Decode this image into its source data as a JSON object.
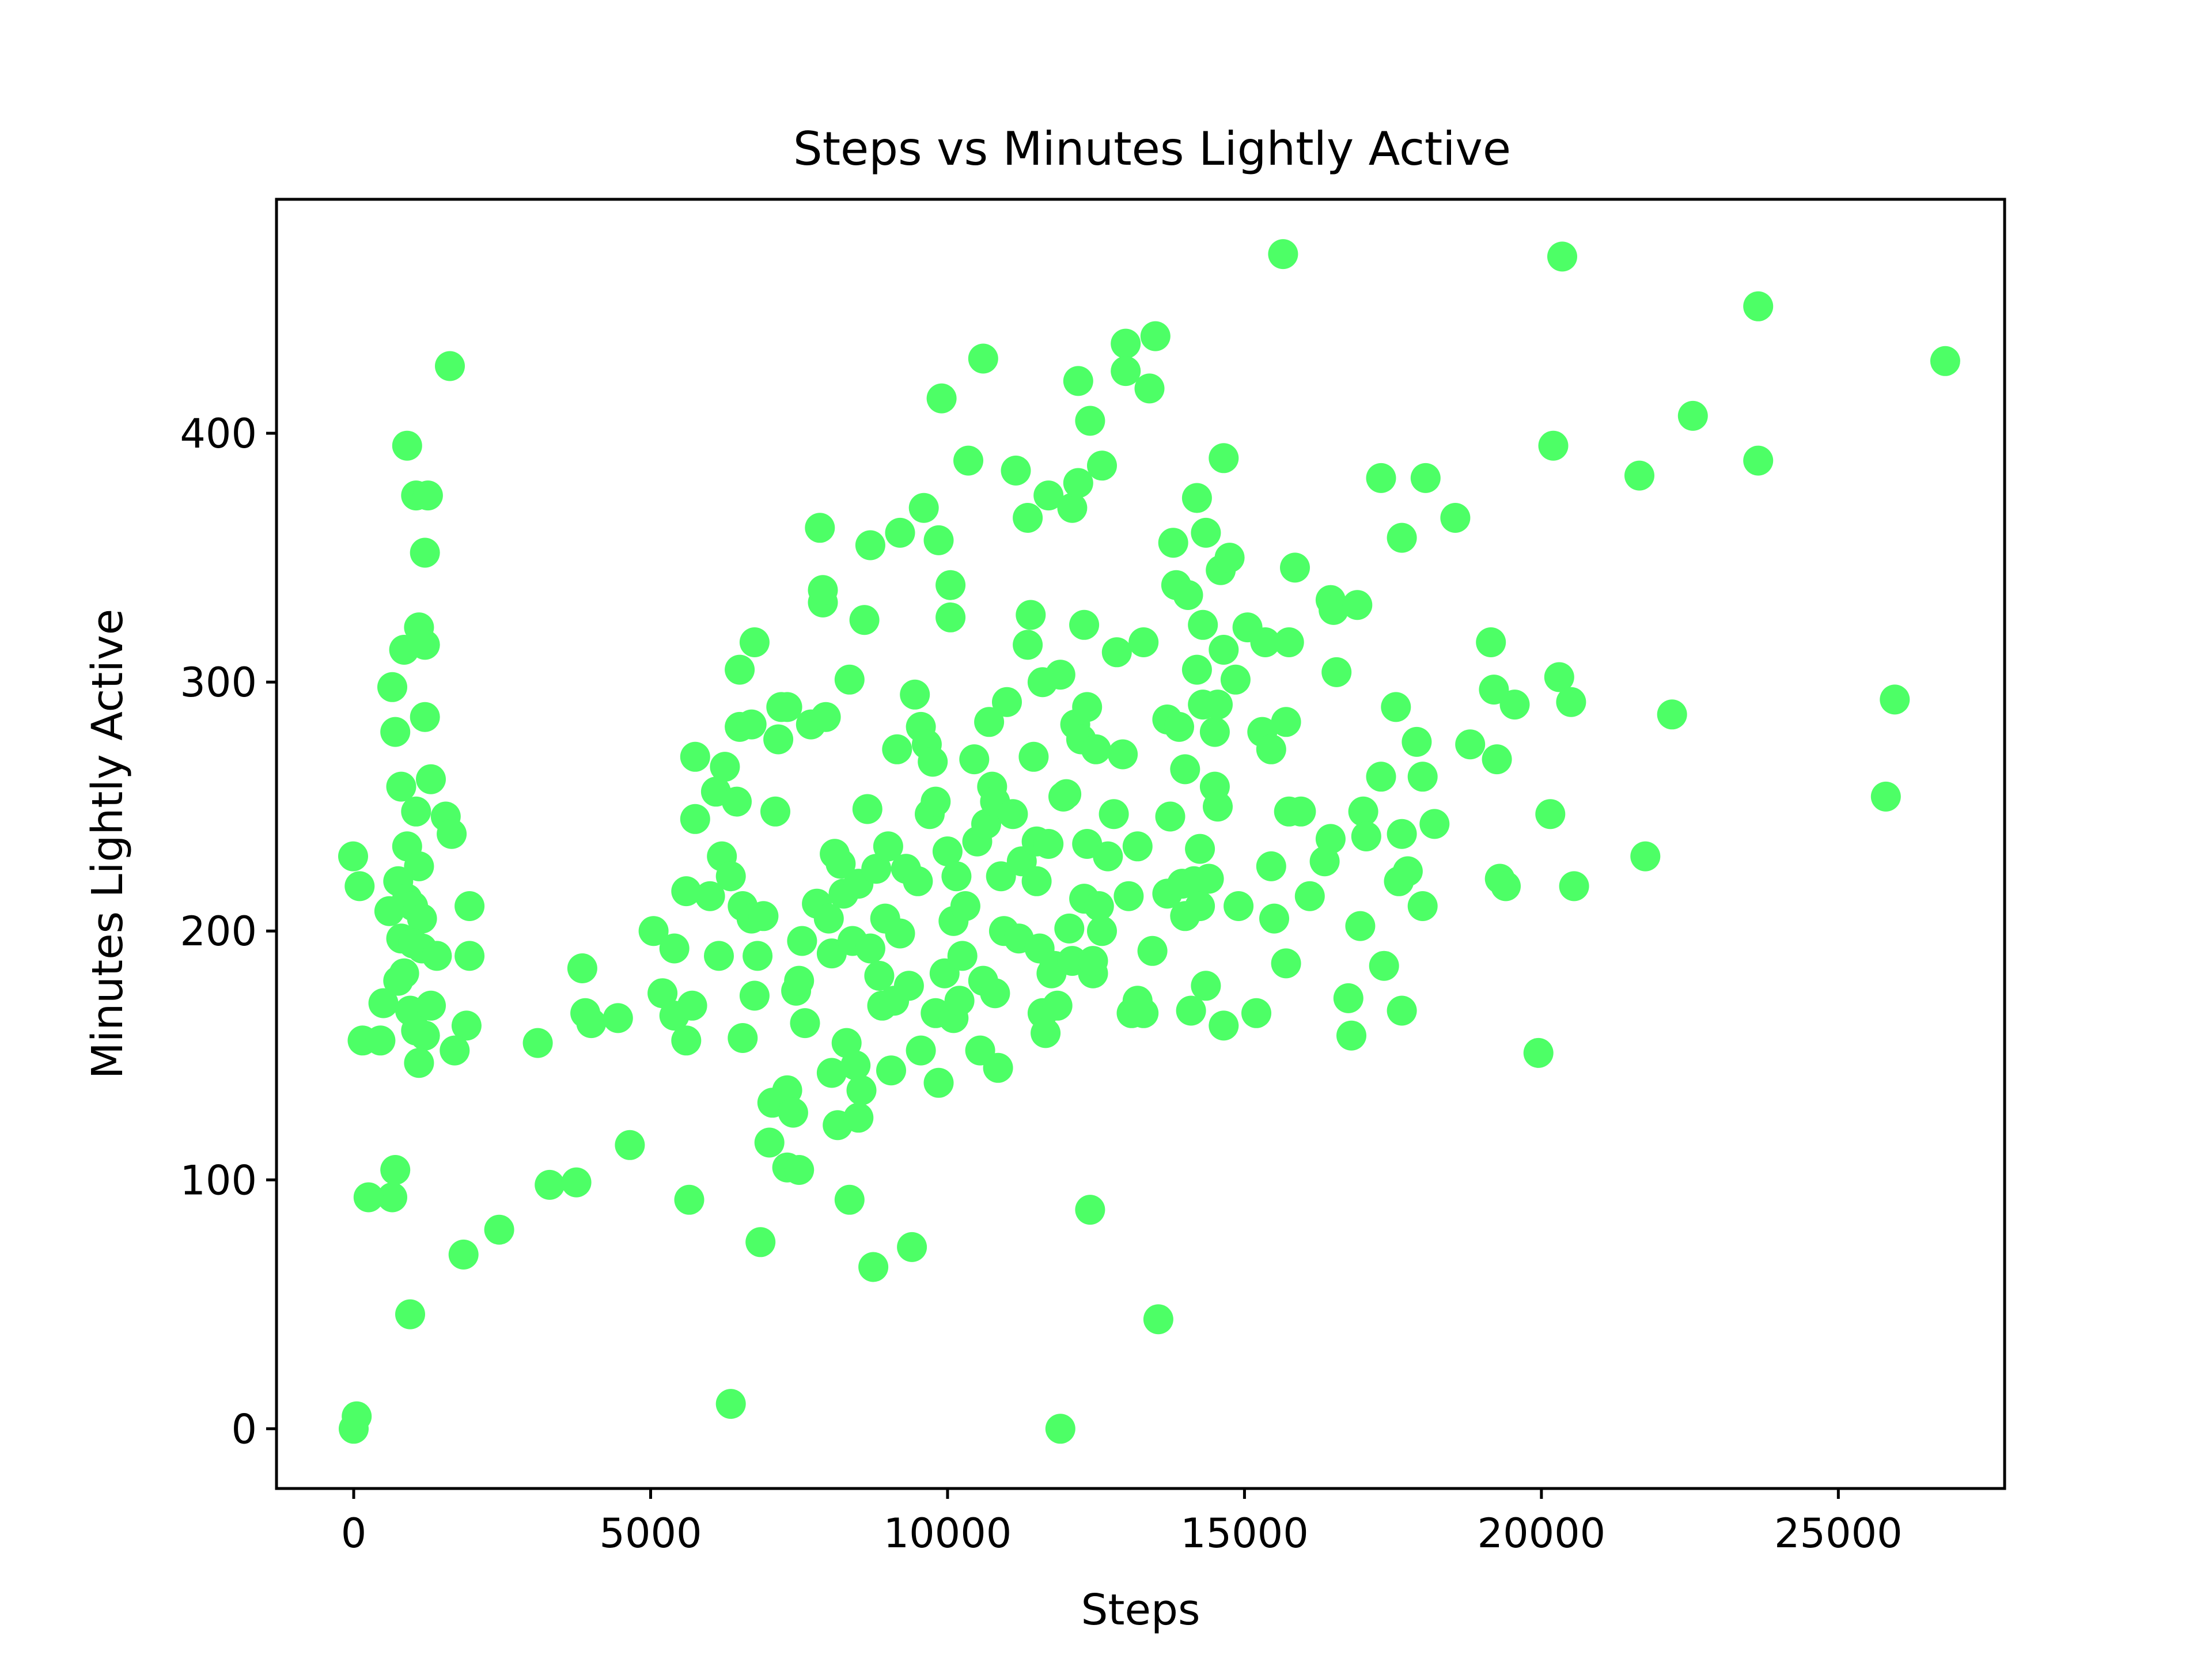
{
  "chart_data": {
    "type": "scatter",
    "title": "Steps vs Minutes Lightly Active",
    "xlabel": "Steps",
    "ylabel": "Minutes Lightly Active",
    "xlim": [
      -1300,
      27800
    ],
    "ylim": [
      -24,
      494
    ],
    "xticks": [
      0,
      5000,
      10000,
      15000,
      20000,
      25000
    ],
    "yticks": [
      0,
      100,
      200,
      300,
      400
    ],
    "grid": false,
    "legend": "none",
    "marker_color": "#4dff66",
    "points": [
      [
        1620,
        427
      ],
      [
        900,
        395
      ],
      [
        1050,
        375
      ],
      [
        1250,
        375
      ],
      [
        1200,
        352
      ],
      [
        1100,
        322
      ],
      [
        1200,
        315
      ],
      [
        850,
        313
      ],
      [
        650,
        298
      ],
      [
        1200,
        286
      ],
      [
        700,
        280
      ],
      [
        1300,
        261
      ],
      [
        800,
        258
      ],
      [
        1050,
        248
      ],
      [
        1550,
        246
      ],
      [
        1650,
        239
      ],
      [
        900,
        234
      ],
      [
        1100,
        226
      ],
      [
        -10,
        230
      ],
      [
        100,
        218
      ],
      [
        750,
        220
      ],
      [
        900,
        213
      ],
      [
        1000,
        210
      ],
      [
        1150,
        205
      ],
      [
        600,
        208
      ],
      [
        1950,
        210
      ],
      [
        800,
        197
      ],
      [
        1000,
        195
      ],
      [
        1150,
        193
      ],
      [
        1400,
        190
      ],
      [
        1950,
        190
      ],
      [
        850,
        183
      ],
      [
        750,
        180
      ],
      [
        500,
        171
      ],
      [
        950,
        168
      ],
      [
        1300,
        170
      ],
      [
        1050,
        160
      ],
      [
        1200,
        158
      ],
      [
        1900,
        162
      ],
      [
        1700,
        152
      ],
      [
        150,
        156
      ],
      [
        450,
        156
      ],
      [
        1100,
        147
      ],
      [
        700,
        104
      ],
      [
        650,
        93
      ],
      [
        250,
        93
      ],
      [
        950,
        46
      ],
      [
        0,
        0
      ],
      [
        50,
        5
      ],
      [
        1850,
        70
      ],
      [
        2450,
        80
      ],
      [
        3100,
        155
      ],
      [
        3300,
        98
      ],
      [
        3750,
        99
      ],
      [
        3850,
        185
      ],
      [
        3900,
        167
      ],
      [
        4000,
        163
      ],
      [
        4450,
        165
      ],
      [
        4650,
        114
      ],
      [
        5050,
        200
      ],
      [
        5200,
        175
      ],
      [
        5400,
        193
      ],
      [
        5400,
        166
      ],
      [
        5600,
        156
      ],
      [
        5600,
        216
      ],
      [
        5700,
        170
      ],
      [
        5650,
        92
      ],
      [
        5750,
        270
      ],
      [
        5750,
        245
      ],
      [
        6000,
        214
      ],
      [
        6100,
        256
      ],
      [
        6150,
        190
      ],
      [
        6200,
        230
      ],
      [
        6250,
        266
      ],
      [
        6350,
        222
      ],
      [
        6450,
        252
      ],
      [
        6500,
        305
      ],
      [
        6500,
        282
      ],
      [
        6550,
        210
      ],
      [
        6550,
        157
      ],
      [
        6700,
        205
      ],
      [
        6750,
        316
      ],
      [
        6700,
        283
      ],
      [
        6750,
        174
      ],
      [
        6800,
        190
      ],
      [
        6900,
        206
      ],
      [
        6850,
        75
      ],
      [
        6350,
        10
      ],
      [
        7000,
        115
      ],
      [
        7050,
        131
      ],
      [
        7100,
        248
      ],
      [
        7150,
        277
      ],
      [
        7200,
        290
      ],
      [
        7300,
        290
      ],
      [
        7300,
        105
      ],
      [
        7300,
        136
      ],
      [
        7400,
        127
      ],
      [
        7450,
        176
      ],
      [
        7500,
        180
      ],
      [
        7500,
        104
      ],
      [
        7550,
        196
      ],
      [
        7600,
        163
      ],
      [
        7700,
        283
      ],
      [
        7800,
        211
      ],
      [
        7850,
        362
      ],
      [
        7900,
        332
      ],
      [
        7900,
        337
      ],
      [
        7950,
        286
      ],
      [
        8000,
        205
      ],
      [
        8050,
        143
      ],
      [
        8050,
        191
      ],
      [
        8100,
        231
      ],
      [
        8150,
        122
      ],
      [
        8200,
        227
      ],
      [
        8250,
        215
      ],
      [
        8300,
        155
      ],
      [
        8350,
        92
      ],
      [
        8350,
        301
      ],
      [
        8400,
        196
      ],
      [
        8450,
        146
      ],
      [
        8500,
        219
      ],
      [
        8500,
        125
      ],
      [
        8550,
        136
      ],
      [
        8600,
        325
      ],
      [
        8650,
        249
      ],
      [
        8700,
        193
      ],
      [
        8700,
        355
      ],
      [
        8750,
        65
      ],
      [
        8800,
        225
      ],
      [
        8850,
        182
      ],
      [
        8900,
        170
      ],
      [
        8950,
        205
      ],
      [
        9000,
        234
      ],
      [
        9050,
        144
      ],
      [
        9100,
        172
      ],
      [
        9150,
        273
      ],
      [
        9200,
        199
      ],
      [
        9200,
        360
      ],
      [
        9300,
        225
      ],
      [
        9350,
        178
      ],
      [
        9400,
        73
      ],
      [
        9450,
        295
      ],
      [
        9500,
        220
      ],
      [
        9550,
        152
      ],
      [
        9550,
        282
      ],
      [
        9600,
        370
      ],
      [
        9650,
        275
      ],
      [
        9700,
        247
      ],
      [
        9750,
        268
      ],
      [
        9800,
        167
      ],
      [
        9800,
        252
      ],
      [
        9850,
        139
      ],
      [
        9850,
        357
      ],
      [
        9900,
        414
      ],
      [
        9950,
        183
      ],
      [
        10000,
        232
      ],
      [
        10050,
        339
      ],
      [
        10050,
        326
      ],
      [
        10100,
        165
      ],
      [
        10100,
        204
      ],
      [
        10150,
        222
      ],
      [
        10200,
        172
      ],
      [
        10250,
        190
      ],
      [
        10300,
        210
      ],
      [
        10350,
        389
      ],
      [
        10450,
        269
      ],
      [
        10500,
        236
      ],
      [
        10550,
        152
      ],
      [
        10600,
        430
      ],
      [
        10600,
        180
      ],
      [
        10650,
        243
      ],
      [
        10700,
        284
      ],
      [
        10750,
        258
      ],
      [
        10800,
        252
      ],
      [
        10800,
        175
      ],
      [
        10850,
        145
      ],
      [
        10900,
        222
      ],
      [
        10950,
        200
      ],
      [
        11000,
        292
      ],
      [
        11100,
        247
      ],
      [
        11150,
        385
      ],
      [
        11200,
        197
      ],
      [
        11250,
        228
      ],
      [
        11350,
        315
      ],
      [
        11350,
        366
      ],
      [
        11400,
        327
      ],
      [
        11450,
        270
      ],
      [
        11500,
        236
      ],
      [
        11500,
        220
      ],
      [
        11550,
        193
      ],
      [
        11600,
        167
      ],
      [
        11600,
        300
      ],
      [
        11650,
        159
      ],
      [
        11700,
        375
      ],
      [
        11700,
        235
      ],
      [
        11750,
        183
      ],
      [
        11800,
        186
      ],
      [
        11850,
        170
      ],
      [
        11900,
        303
      ],
      [
        11900,
        0
      ],
      [
        11950,
        254
      ],
      [
        12000,
        255
      ],
      [
        12050,
        201
      ],
      [
        12100,
        188
      ],
      [
        12100,
        370
      ],
      [
        12150,
        283
      ],
      [
        12200,
        380
      ],
      [
        12200,
        421
      ],
      [
        12250,
        277
      ],
      [
        12300,
        213
      ],
      [
        12300,
        323
      ],
      [
        12350,
        235
      ],
      [
        12350,
        290
      ],
      [
        12400,
        88
      ],
      [
        12400,
        405
      ],
      [
        12450,
        183
      ],
      [
        12450,
        188
      ],
      [
        12500,
        273
      ],
      [
        12550,
        210
      ],
      [
        12600,
        200
      ],
      [
        12600,
        387
      ],
      [
        12700,
        230
      ],
      [
        12800,
        247
      ],
      [
        12850,
        312
      ],
      [
        12950,
        271
      ],
      [
        13000,
        436
      ],
      [
        13000,
        425
      ],
      [
        13050,
        214
      ],
      [
        13100,
        167
      ],
      [
        13200,
        172
      ],
      [
        13200,
        234
      ],
      [
        13300,
        316
      ],
      [
        13300,
        167
      ],
      [
        13400,
        418
      ],
      [
        13450,
        192
      ],
      [
        13500,
        439
      ],
      [
        13550,
        44
      ],
      [
        13700,
        285
      ],
      [
        13700,
        215
      ],
      [
        13750,
        246
      ],
      [
        13800,
        356
      ],
      [
        13850,
        339
      ],
      [
        13900,
        282
      ],
      [
        13950,
        219
      ],
      [
        14000,
        265
      ],
      [
        14000,
        206
      ],
      [
        14050,
        335
      ],
      [
        14100,
        168
      ],
      [
        14150,
        220
      ],
      [
        14200,
        305
      ],
      [
        14200,
        374
      ],
      [
        14250,
        210
      ],
      [
        14250,
        233
      ],
      [
        14300,
        323
      ],
      [
        14300,
        291
      ],
      [
        14350,
        360
      ],
      [
        14350,
        178
      ],
      [
        14400,
        221
      ],
      [
        14500,
        258
      ],
      [
        14500,
        280
      ],
      [
        14550,
        291
      ],
      [
        14550,
        250
      ],
      [
        14600,
        345
      ],
      [
        14650,
        313
      ],
      [
        14650,
        162
      ],
      [
        14650,
        390
      ],
      [
        14750,
        350
      ],
      [
        14850,
        301
      ],
      [
        14900,
        210
      ],
      [
        15050,
        322
      ],
      [
        15200,
        167
      ],
      [
        15300,
        280
      ],
      [
        15350,
        316
      ],
      [
        15450,
        273
      ],
      [
        15450,
        226
      ],
      [
        15500,
        205
      ],
      [
        15650,
        472
      ],
      [
        15700,
        187
      ],
      [
        15700,
        284
      ],
      [
        15750,
        316
      ],
      [
        15750,
        248
      ],
      [
        15850,
        346
      ],
      [
        15950,
        248
      ],
      [
        16100,
        214
      ],
      [
        16350,
        228
      ],
      [
        16450,
        237
      ],
      [
        16450,
        333
      ],
      [
        16500,
        329
      ],
      [
        16550,
        304
      ],
      [
        16750,
        173
      ],
      [
        16800,
        158
      ],
      [
        16900,
        331
      ],
      [
        16950,
        202
      ],
      [
        17000,
        248
      ],
      [
        17050,
        238
      ],
      [
        17300,
        262
      ],
      [
        17300,
        382
      ],
      [
        17350,
        186
      ],
      [
        17550,
        290
      ],
      [
        17600,
        220
      ],
      [
        17650,
        358
      ],
      [
        17650,
        239
      ],
      [
        17650,
        168
      ],
      [
        17750,
        224
      ],
      [
        17900,
        276
      ],
      [
        18000,
        210
      ],
      [
        18000,
        262
      ],
      [
        18050,
        382
      ],
      [
        18200,
        243
      ],
      [
        18550,
        366
      ],
      [
        18800,
        275
      ],
      [
        19150,
        316
      ],
      [
        19200,
        297
      ],
      [
        19250,
        269
      ],
      [
        19300,
        221
      ],
      [
        19400,
        218
      ],
      [
        19550,
        291
      ],
      [
        19950,
        151
      ],
      [
        20150,
        247
      ],
      [
        20200,
        395
      ],
      [
        20300,
        302
      ],
      [
        20350,
        471
      ],
      [
        20500,
        292
      ],
      [
        20550,
        218
      ],
      [
        21650,
        383
      ],
      [
        21750,
        230
      ],
      [
        22200,
        287
      ],
      [
        22550,
        407
      ],
      [
        23650,
        451
      ],
      [
        23650,
        389
      ],
      [
        25800,
        254
      ],
      [
        25950,
        293
      ],
      [
        26800,
        429
      ]
    ]
  }
}
